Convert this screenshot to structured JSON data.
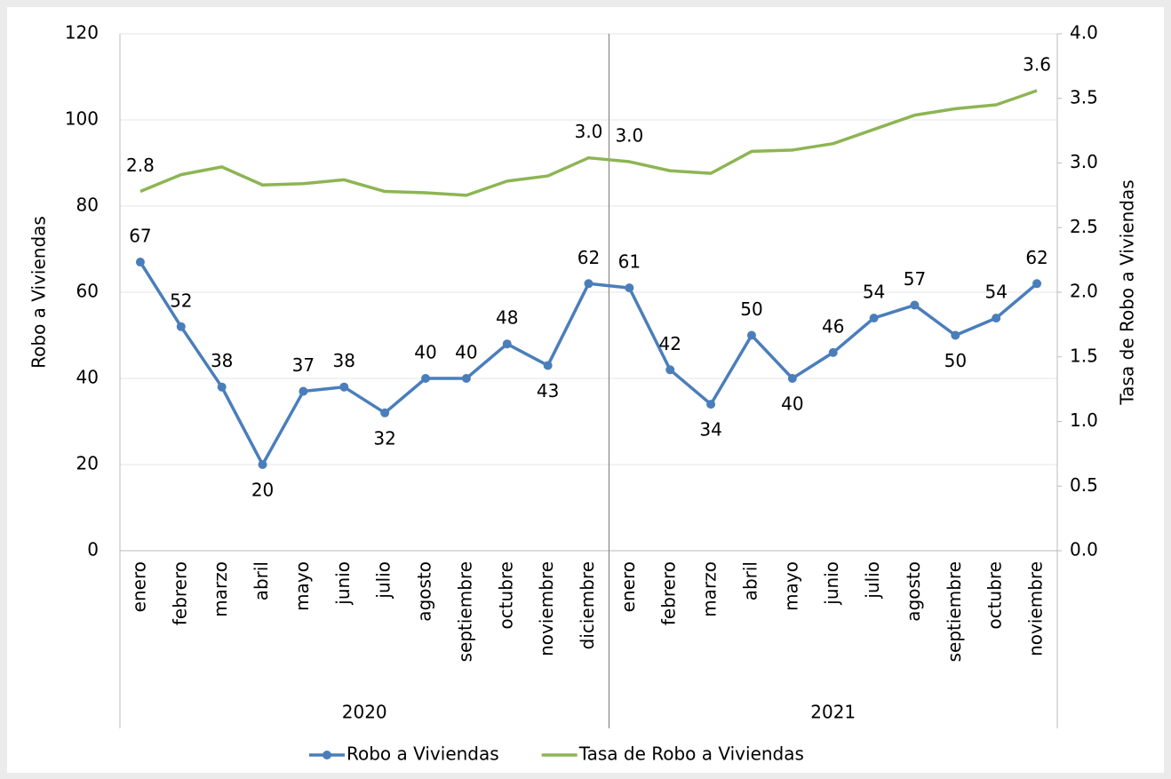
{
  "chart_data": {
    "type": "line",
    "categories": [
      "enero",
      "febrero",
      "marzo",
      "abril",
      "mayo",
      "junio",
      "julio",
      "agosto",
      "septiembre",
      "octubre",
      "noviembre",
      "diciembre",
      "enero",
      "febrero",
      "marzo",
      "abril",
      "mayo",
      "junio",
      "julio",
      "agosto",
      "septiembre",
      "octubre",
      "noviembre"
    ],
    "groups": [
      {
        "label": "2020",
        "count": 12
      },
      {
        "label": "2021",
        "count": 11
      }
    ],
    "ylabel": "Robo a Viviendas",
    "y2label": "Tasa de Robo a Viviendas",
    "ylim": [
      0,
      120
    ],
    "yticks": [
      0,
      20,
      40,
      60,
      80,
      100,
      120
    ],
    "y2lim": [
      0,
      4
    ],
    "y2ticks": [
      {
        "value": 0,
        "label": "0.0"
      },
      0.5,
      {
        "value": 1,
        "label": "1.0"
      },
      1.5,
      {
        "value": 2,
        "label": "2.0"
      },
      2.5,
      {
        "value": 3,
        "label": "3.0"
      },
      3.5,
      {
        "value": 4,
        "label": "4.0"
      }
    ],
    "grid": true,
    "legend": "bottom",
    "series": [
      {
        "name": "Robo a Viviendas",
        "color": "#4a7ebb",
        "marker": true,
        "label_color": "#000000",
        "values": [
          67,
          52,
          38,
          20,
          37,
          38,
          32,
          40,
          40,
          48,
          43,
          62,
          61,
          42,
          34,
          50,
          40,
          46,
          54,
          57,
          50,
          54,
          62
        ]
      },
      {
        "name": "Tasa de Robo a Viviendas",
        "color": "#8db554",
        "axis": "y2",
        "marker": false,
        "label_color": "#f0913b",
        "values": [
          2.78,
          2.91,
          2.97,
          2.83,
          2.84,
          2.87,
          2.78,
          2.77,
          2.75,
          2.86,
          2.9,
          3.04,
          3.01,
          2.94,
          2.92,
          3.09,
          3.1,
          3.15,
          3.26,
          3.37,
          3.42,
          3.45,
          3.56
        ],
        "value_labels": [
          "2.8",
          null,
          null,
          null,
          null,
          null,
          null,
          null,
          null,
          null,
          null,
          "3.0",
          "3.0",
          null,
          null,
          null,
          null,
          null,
          null,
          null,
          null,
          null,
          "3.6"
        ]
      }
    ]
  }
}
